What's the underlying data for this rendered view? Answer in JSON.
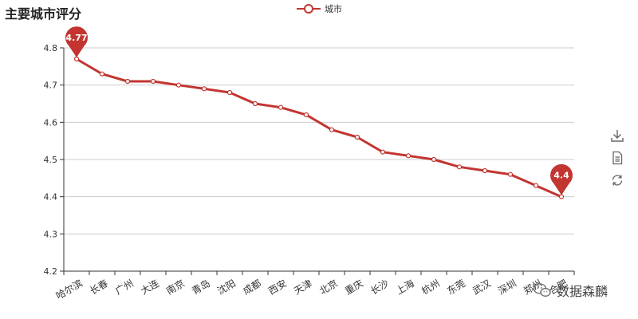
{
  "chart_data": {
    "type": "line",
    "title": "主要城市评分",
    "categories": [
      "哈尔滨",
      "长春",
      "广州",
      "大连",
      "南京",
      "青岛",
      "沈阳",
      "成都",
      "西安",
      "天津",
      "北京",
      "重庆",
      "长沙",
      "上海",
      "杭州",
      "东莞",
      "武汉",
      "深圳",
      "郑州",
      "合肥"
    ],
    "series": [
      {
        "name": "城市",
        "values": [
          4.77,
          4.73,
          4.71,
          4.71,
          4.7,
          4.69,
          4.68,
          4.65,
          4.64,
          4.62,
          4.58,
          4.56,
          4.52,
          4.51,
          4.5,
          4.48,
          4.47,
          4.46,
          4.43,
          4.4
        ]
      }
    ],
    "ylim": [
      4.2,
      4.8
    ],
    "yticks": [
      "4.2",
      "4.3",
      "4.4",
      "4.5",
      "4.6",
      "4.7",
      "4.8"
    ],
    "markers": [
      {
        "label": "4.77",
        "category": "哈尔滨",
        "value": 4.77
      },
      {
        "label": "4.4",
        "category": "合肥",
        "value": 4.4
      }
    ],
    "grid": true,
    "legend_position": "top-center",
    "line_color": "#c23531",
    "xlabel": "",
    "ylabel": ""
  },
  "legend": {
    "label": "城市"
  },
  "toolbox": {
    "items": [
      {
        "icon": "download-icon"
      },
      {
        "icon": "data-view-icon"
      },
      {
        "icon": "refresh-icon"
      }
    ]
  },
  "watermark": {
    "text": "数据森麟",
    "icon": "wechat-icon"
  }
}
